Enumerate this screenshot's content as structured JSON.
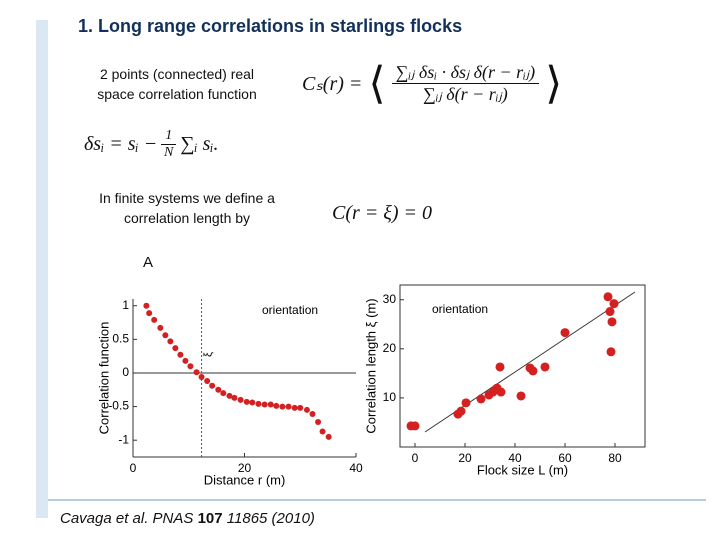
{
  "title": "1. Long range correlations in starlings flocks",
  "definition_text": "2 points (connected) real space correlation function",
  "formula_cs": {
    "lhs": "Cₛ(r) =",
    "numerator": "∑ᵢⱼ δsᵢ · δsⱼ δ(r − rᵢⱼ)",
    "denominator": "∑ᵢⱼ δ(r − rᵢⱼ)"
  },
  "formula_delta": {
    "lhs": "δsᵢ = sᵢ −",
    "frac_num": "1",
    "frac_den": "N",
    "rhs": "∑ᵢ sᵢ."
  },
  "finite_text": "In finite systems we define a correlation length by",
  "formula_xi": "C(r = ξ) = 0",
  "panel_label": "A",
  "citation": {
    "authors": "Cavaga et al. PNAS",
    "volume": "107",
    "rest": "11865 (2010)"
  },
  "chart_data": [
    {
      "type": "scatter",
      "xlabel": "Distance  r (m)",
      "ylabel": "Correlation function",
      "annotation": "orientation",
      "xi_line": {
        "label": "ξ",
        "x": 12.3
      },
      "color": "#d42020",
      "x": [
        2.4,
        2.9,
        3.8,
        4.9,
        5.8,
        6.7,
        7.6,
        8.5,
        9.4,
        10.3,
        11.4,
        12.3,
        13.3,
        14.2,
        15.3,
        16.2,
        17.3,
        18.2,
        19.3,
        20.4,
        21.4,
        22.5,
        23.6,
        24.7,
        25.7,
        26.8,
        27.9,
        29,
        30,
        31.2,
        32.2,
        33.2,
        34,
        35.1
      ],
      "values": [
        1,
        0.89,
        0.79,
        0.67,
        0.56,
        0.47,
        0.37,
        0.27,
        0.18,
        0.1,
        0.01,
        -0.06,
        -0.12,
        -0.19,
        -0.25,
        -0.3,
        -0.34,
        -0.37,
        -0.4,
        -0.43,
        -0.44,
        -0.46,
        -0.47,
        -0.47,
        -0.49,
        -0.5,
        -0.5,
        -0.52,
        -0.52,
        -0.55,
        -0.61,
        -0.73,
        -0.87,
        -0.95
      ],
      "xlim": [
        0,
        40
      ],
      "ylim": [
        -1.25,
        1.1
      ],
      "xticks": [
        0,
        20,
        40
      ],
      "yticks": [
        1,
        0.5,
        0,
        -0.5,
        -1
      ]
    },
    {
      "type": "scatter",
      "xlabel": "Flock size L (m)",
      "ylabel": "Correlation length ξ (m)",
      "annotation": "orientation",
      "color": "#d42020",
      "x": [
        -1.6,
        0,
        17.2,
        18.4,
        20.4,
        26.4,
        29.6,
        31.2,
        32.8,
        34.4,
        42.4,
        34,
        46,
        52,
        47.2,
        60,
        78,
        78.8,
        79.6,
        77.2,
        78.4
      ],
      "values": [
        4.3,
        4.3,
        6.7,
        7.3,
        9,
        9.8,
        10.6,
        11.2,
        12,
        11.2,
        10.4,
        16.3,
        16.1,
        16.3,
        15.5,
        23.3,
        27.6,
        25.5,
        29.2,
        30.6,
        19.4
      ],
      "xlim": [
        -6,
        92
      ],
      "ylim": [
        0,
        33
      ],
      "xticks": [
        0,
        20,
        40,
        60,
        80
      ],
      "yticks": [
        10,
        20,
        30
      ]
    }
  ]
}
